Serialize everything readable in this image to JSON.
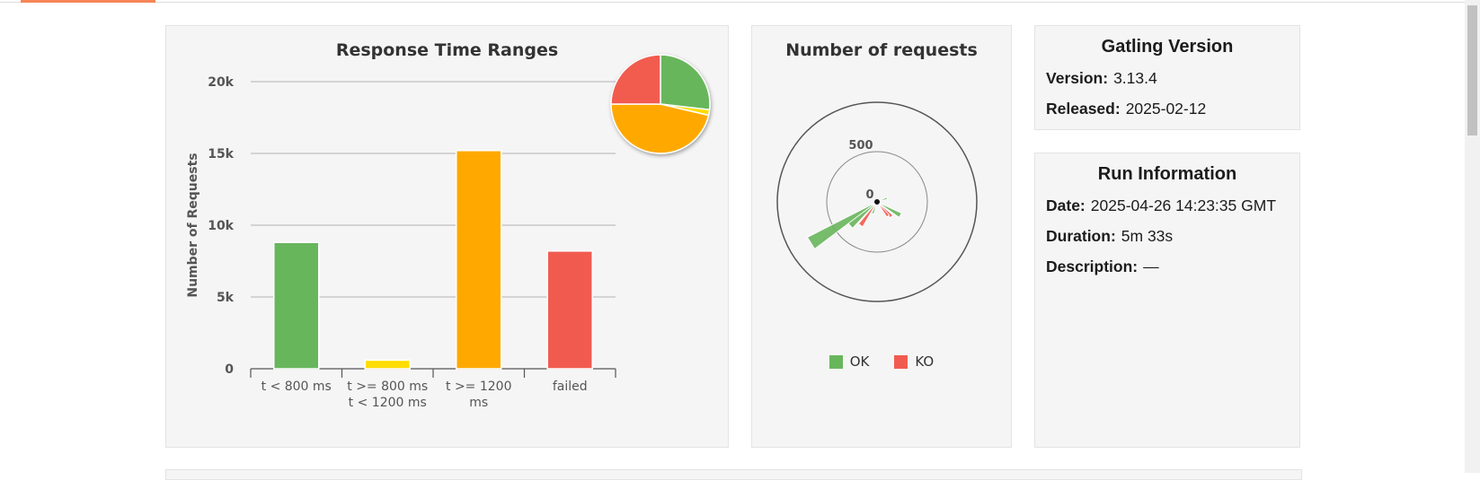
{
  "ranges_chart": {
    "title": "Response Time Ranges",
    "ylabel": "Number of Requests",
    "yticks": [
      "0",
      "5k",
      "10k",
      "15k",
      "20k"
    ],
    "categories": [
      [
        "t < 800 ms"
      ],
      [
        "t >= 800 ms",
        "t < 1200 ms"
      ],
      [
        "t >= 1200",
        "ms"
      ],
      [
        "failed"
      ]
    ],
    "colors": [
      "#68b65c",
      "#ffdd00",
      "#ffa900",
      "#f15b4f"
    ]
  },
  "requests_chart": {
    "title": "Number of requests",
    "ring_labels": [
      "500",
      "0"
    ],
    "legend": [
      {
        "label": "OK",
        "color": "#68b65c"
      },
      {
        "label": "KO",
        "color": "#f15b4f"
      }
    ]
  },
  "chart_data": [
    {
      "type": "bar",
      "title": "Response Time Ranges",
      "ylabel": "Number of Requests",
      "categories": [
        "t < 800 ms",
        "t >= 800 ms t < 1200 ms",
        "t >= 1200 ms",
        "failed"
      ],
      "values": [
        8800,
        600,
        15200,
        8200
      ],
      "ylim": [
        0,
        20000
      ],
      "grid": true
    },
    {
      "type": "pie",
      "labels": [
        "t < 800 ms",
        "t >= 800 ms t < 1200 ms",
        "t >= 1200 ms",
        "failed"
      ],
      "values": [
        8800,
        600,
        15200,
        8200
      ]
    },
    {
      "type": "scatter",
      "title": "Number of requests",
      "series": [
        {
          "name": "OK",
          "values": [
            870,
            400,
            140,
            300,
            120
          ]
        },
        {
          "name": "KO",
          "values": [
            320,
            230,
            200
          ]
        }
      ]
    }
  ],
  "version_panel": {
    "title": "Gatling Version",
    "version_label": "Version:",
    "version_value": "3.13.4",
    "released_label": "Released:",
    "released_value": "2025-02-12"
  },
  "run_panel": {
    "title": "Run Information",
    "date_label": "Date:",
    "date_value": "2025-04-26 14:23:35 GMT",
    "duration_label": "Duration:",
    "duration_value": "5m 33s",
    "description_label": "Description:",
    "description_value": "—"
  }
}
